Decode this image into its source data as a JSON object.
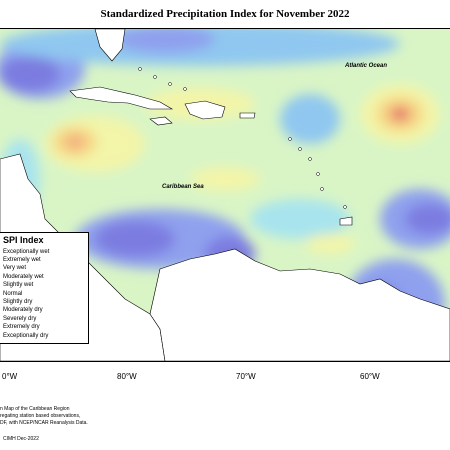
{
  "title": "Standardized Precipitation Index for November 2022",
  "labels": {
    "atlantic": "Atlantic Ocean",
    "caribbean": "Caribbean Sea"
  },
  "longitudes": [
    "0°W",
    "80°W",
    "70°W",
    "60°W"
  ],
  "legend": {
    "title": "SPI Index",
    "items": [
      {
        "label": "Exceptionally wet",
        "color": "#6a5acd"
      },
      {
        "label": "Extremely wet",
        "color": "#7b7be0"
      },
      {
        "label": "Very wet",
        "color": "#8fa0ee"
      },
      {
        "label": "Moderately wet",
        "color": "#8fc7f0"
      },
      {
        "label": "Slightly wet",
        "color": "#a8e4ee"
      },
      {
        "label": "Normal",
        "color": "#d9f5c6"
      },
      {
        "label": "Slightly dry",
        "color": "#f3f5a8"
      },
      {
        "label": "Moderately dry",
        "color": "#f6d585"
      },
      {
        "label": "Severely dry",
        "color": "#f2aa80"
      },
      {
        "label": "Extremely dry",
        "color": "#e66b6b"
      },
      {
        "label": "Exceptionally dry",
        "color": "#c74444"
      }
    ]
  },
  "notes": [
    "n Map of the Caribbean Region",
    "regating station based observations,",
    "DF, with NCEP/NCAR Reanalysis Data.",
    "CIMH Dec-2022"
  ]
}
